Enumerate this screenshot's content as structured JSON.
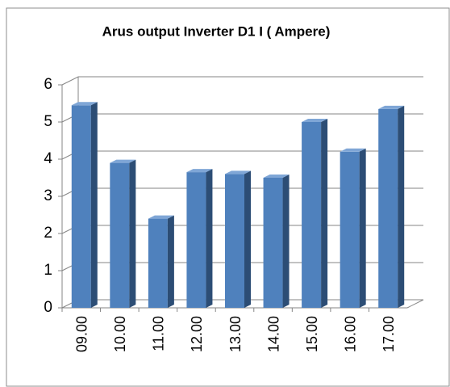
{
  "chart_data": {
    "type": "bar",
    "title": "Arus output Inverter D1 I  ( Ampere)",
    "categories": [
      "09.00",
      "10.00",
      "11.00",
      "12.00",
      "13.00",
      "14.00",
      "15.00",
      "16.00",
      "17.00"
    ],
    "values": [
      5.45,
      3.9,
      2.4,
      3.65,
      3.6,
      3.5,
      5.0,
      4.2,
      5.35
    ],
    "color": "#4f81bd",
    "ylim": [
      0,
      6
    ],
    "yticks": [
      0,
      1,
      2,
      3,
      4,
      5,
      6
    ],
    "grid": true
  }
}
